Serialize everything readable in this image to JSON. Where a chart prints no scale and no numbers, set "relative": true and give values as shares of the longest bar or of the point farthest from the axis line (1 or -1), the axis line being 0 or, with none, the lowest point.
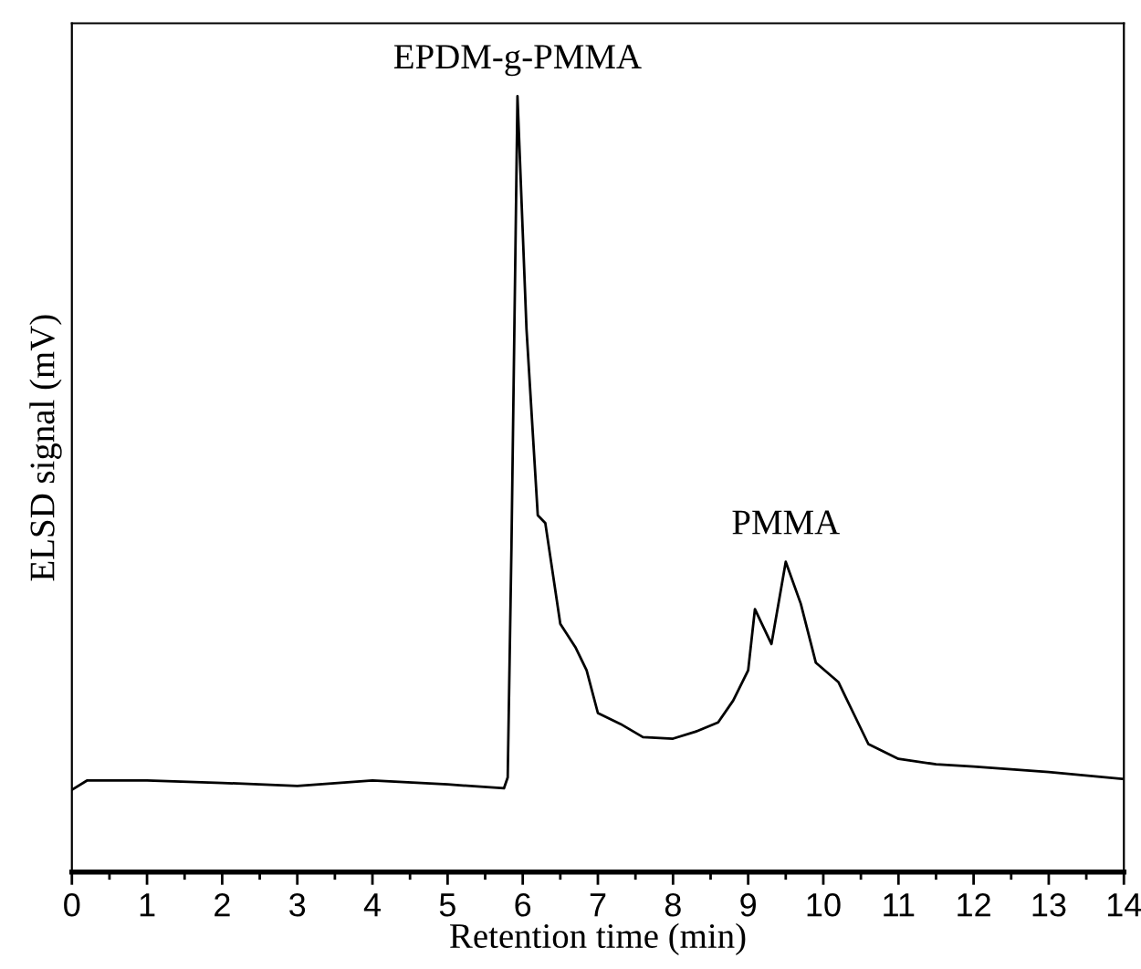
{
  "chart_data": {
    "type": "line",
    "relative": true,
    "xlabel": "Retention time (min)",
    "ylabel": "ELSD signal (mV)",
    "x": [
      0,
      0.2,
      1,
      2,
      3,
      4,
      5,
      5.75,
      5.8,
      5.85,
      5.93,
      6.05,
      6.2,
      6.3,
      6.5,
      6.7,
      6.85,
      7.0,
      7.3,
      7.6,
      8.0,
      8.3,
      8.6,
      8.8,
      9.0,
      9.09,
      9.31,
      9.5,
      9.7,
      9.9,
      10.2,
      10.4,
      10.6,
      11.0,
      11.5,
      12,
      13,
      14
    ],
    "series": [
      {
        "color": "#000000",
        "values": [
          0.106,
          0.118,
          0.118,
          0.115,
          0.111,
          0.118,
          0.113,
          0.108,
          0.122,
          0.42,
          1.0,
          0.7,
          0.46,
          0.45,
          0.32,
          0.29,
          0.26,
          0.205,
          0.191,
          0.174,
          0.172,
          0.181,
          0.193,
          0.221,
          0.26,
          0.339,
          0.294,
          0.4,
          0.346,
          0.27,
          0.245,
          0.205,
          0.165,
          0.146,
          0.139,
          0.136,
          0.129,
          0.12
        ]
      }
    ],
    "xlim": [
      0,
      14
    ],
    "xticks": [
      0,
      1,
      2,
      3,
      4,
      5,
      6,
      7,
      8,
      9,
      10,
      11,
      12,
      13,
      14
    ],
    "annotations": [
      {
        "text": "EPDM-g-PMMA",
        "x": 5.93,
        "y": 1.0
      },
      {
        "text": "PMMA",
        "x": 9.5,
        "y": 0.4
      }
    ],
    "grid": false,
    "legend": false,
    "tick_labels": "x",
    "marker": "none",
    "line_style": "solid"
  }
}
